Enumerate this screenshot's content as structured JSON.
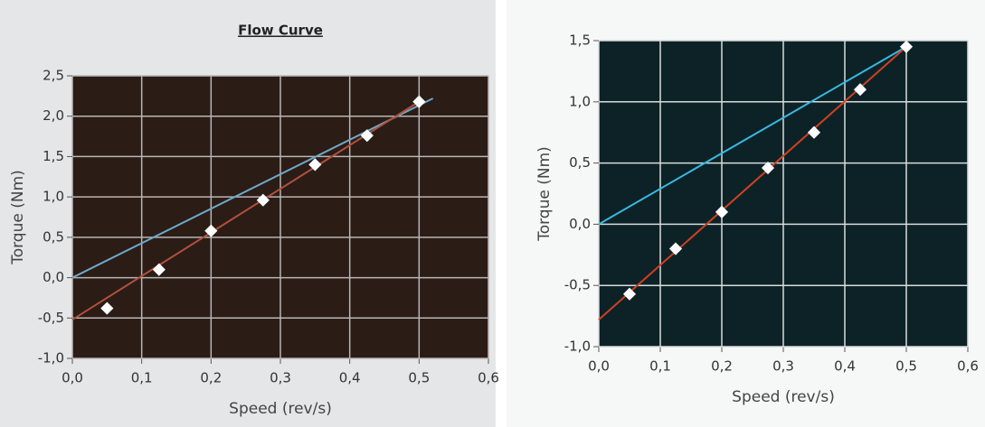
{
  "chart_data": [
    {
      "type": "scatter",
      "title": "Flow Curve",
      "x_label": "Speed (rev/s)",
      "y_label": "Torque (Nm)",
      "xlim": [
        0,
        0.6
      ],
      "ylim": [
        -1,
        2.5
      ],
      "xticks": [
        {
          "value": 0,
          "label": "0,0"
        },
        {
          "value": 0.1,
          "label": "0,1"
        },
        {
          "value": 0.2,
          "label": "0,2"
        },
        {
          "value": 0.3,
          "label": "0,3"
        },
        {
          "value": 0.4,
          "label": "0,4"
        },
        {
          "value": 0.5,
          "label": "0,5"
        },
        {
          "value": 0.6,
          "label": "0,6"
        }
      ],
      "yticks": [
        {
          "value": -1,
          "label": "-1,0"
        },
        {
          "value": -0.5,
          "label": "-0,5"
        },
        {
          "value": 0,
          "label": "0,0"
        },
        {
          "value": 0.5,
          "label": "0,5"
        },
        {
          "value": 1,
          "label": "1,0"
        },
        {
          "value": 1.5,
          "label": "1,5"
        },
        {
          "value": 2,
          "label": "2,0"
        },
        {
          "value": 2.5,
          "label": "2,5"
        }
      ],
      "grid": true,
      "series": [
        {
          "type": "scatter",
          "color": "#ffffff",
          "x": [
            0.05,
            0.125,
            0.2,
            0.275,
            0.35,
            0.425,
            0.5
          ],
          "values": [
            -0.38,
            0.1,
            0.58,
            0.96,
            1.4,
            1.76,
            2.18
          ]
        },
        {
          "type": "line",
          "color": "#6fa8c8",
          "x": [
            0,
            0.52
          ],
          "values": [
            0,
            2.22
          ]
        },
        {
          "type": "line",
          "color": "#b0503c",
          "x": [
            0,
            0.5
          ],
          "values": [
            -0.52,
            2.18
          ]
        }
      ]
    },
    {
      "type": "scatter",
      "x_label": "Speed (rev/s)",
      "y_label": "Torque (Nm)",
      "xlim": [
        0,
        0.6
      ],
      "ylim": [
        -1,
        1.5
      ],
      "xticks": [
        {
          "value": 0,
          "label": "0,0"
        },
        {
          "value": 0.1,
          "label": "0,1"
        },
        {
          "value": 0.2,
          "label": "0,2"
        },
        {
          "value": 0.3,
          "label": "0,3"
        },
        {
          "value": 0.4,
          "label": "0,4"
        },
        {
          "value": 0.5,
          "label": "0,5"
        },
        {
          "value": 0.6,
          "label": "0,6"
        }
      ],
      "yticks": [
        {
          "value": -1,
          "label": "-1,0"
        },
        {
          "value": -0.5,
          "label": "-0,5"
        },
        {
          "value": 0,
          "label": "0,0"
        },
        {
          "value": 0.5,
          "label": "0,5"
        },
        {
          "value": 1,
          "label": "1,0"
        },
        {
          "value": 1.5,
          "label": "1,5"
        }
      ],
      "grid": true,
      "series": [
        {
          "type": "scatter",
          "color": "#ffffff",
          "x": [
            0.05,
            0.125,
            0.2,
            0.275,
            0.35,
            0.425,
            0.5
          ],
          "values": [
            -0.57,
            -0.2,
            0.1,
            0.46,
            0.75,
            1.1,
            1.45
          ]
        },
        {
          "type": "line",
          "color": "#38b8e0",
          "x": [
            0,
            0.5
          ],
          "values": [
            0,
            1.45
          ]
        },
        {
          "type": "line",
          "color": "#d04020",
          "x": [
            0,
            0.5
          ],
          "values": [
            -0.78,
            1.45
          ]
        }
      ]
    }
  ]
}
